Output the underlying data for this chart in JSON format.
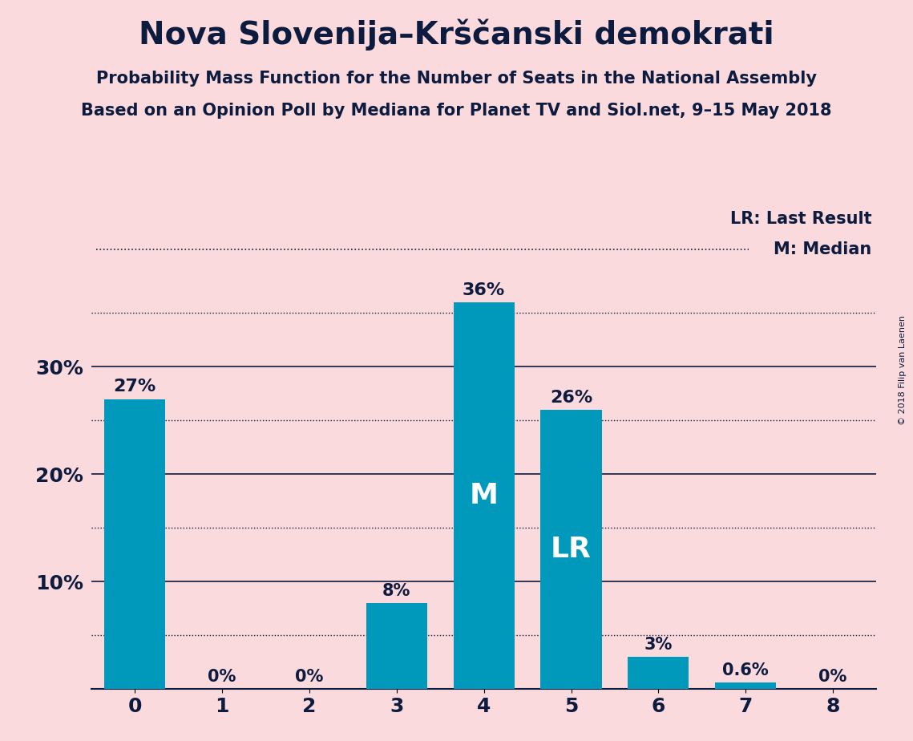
{
  "title": "Nova Slovenija–Krščanski demokrati",
  "subtitle1": "Probability Mass Function for the Number of Seats in the National Assembly",
  "subtitle2": "Based on an Opinion Poll by Mediana for Planet TV and Siol.net, 9–15 May 2018",
  "categories": [
    0,
    1,
    2,
    3,
    4,
    5,
    6,
    7,
    8
  ],
  "values": [
    27,
    0,
    0,
    8,
    36,
    26,
    3,
    0.6,
    0
  ],
  "bar_color": "#0099BB",
  "background_color": "#FADADD",
  "text_color": "#0D1B3E",
  "label_color_white": "#FFFFFF",
  "bar_labels": [
    "27%",
    "0%",
    "0%",
    "8%",
    "36%",
    "26%",
    "3%",
    "0.6%",
    "0%"
  ],
  "median_bar": 4,
  "lr_bar": 5,
  "ylim": [
    0,
    40
  ],
  "solid_lines": [
    10,
    20,
    30
  ],
  "dotted_lines": [
    5,
    15,
    25,
    35
  ],
  "copyright": "© 2018 Filip van Laenen",
  "legend_lr": "LR: Last Result",
  "legend_m": "M: Median"
}
